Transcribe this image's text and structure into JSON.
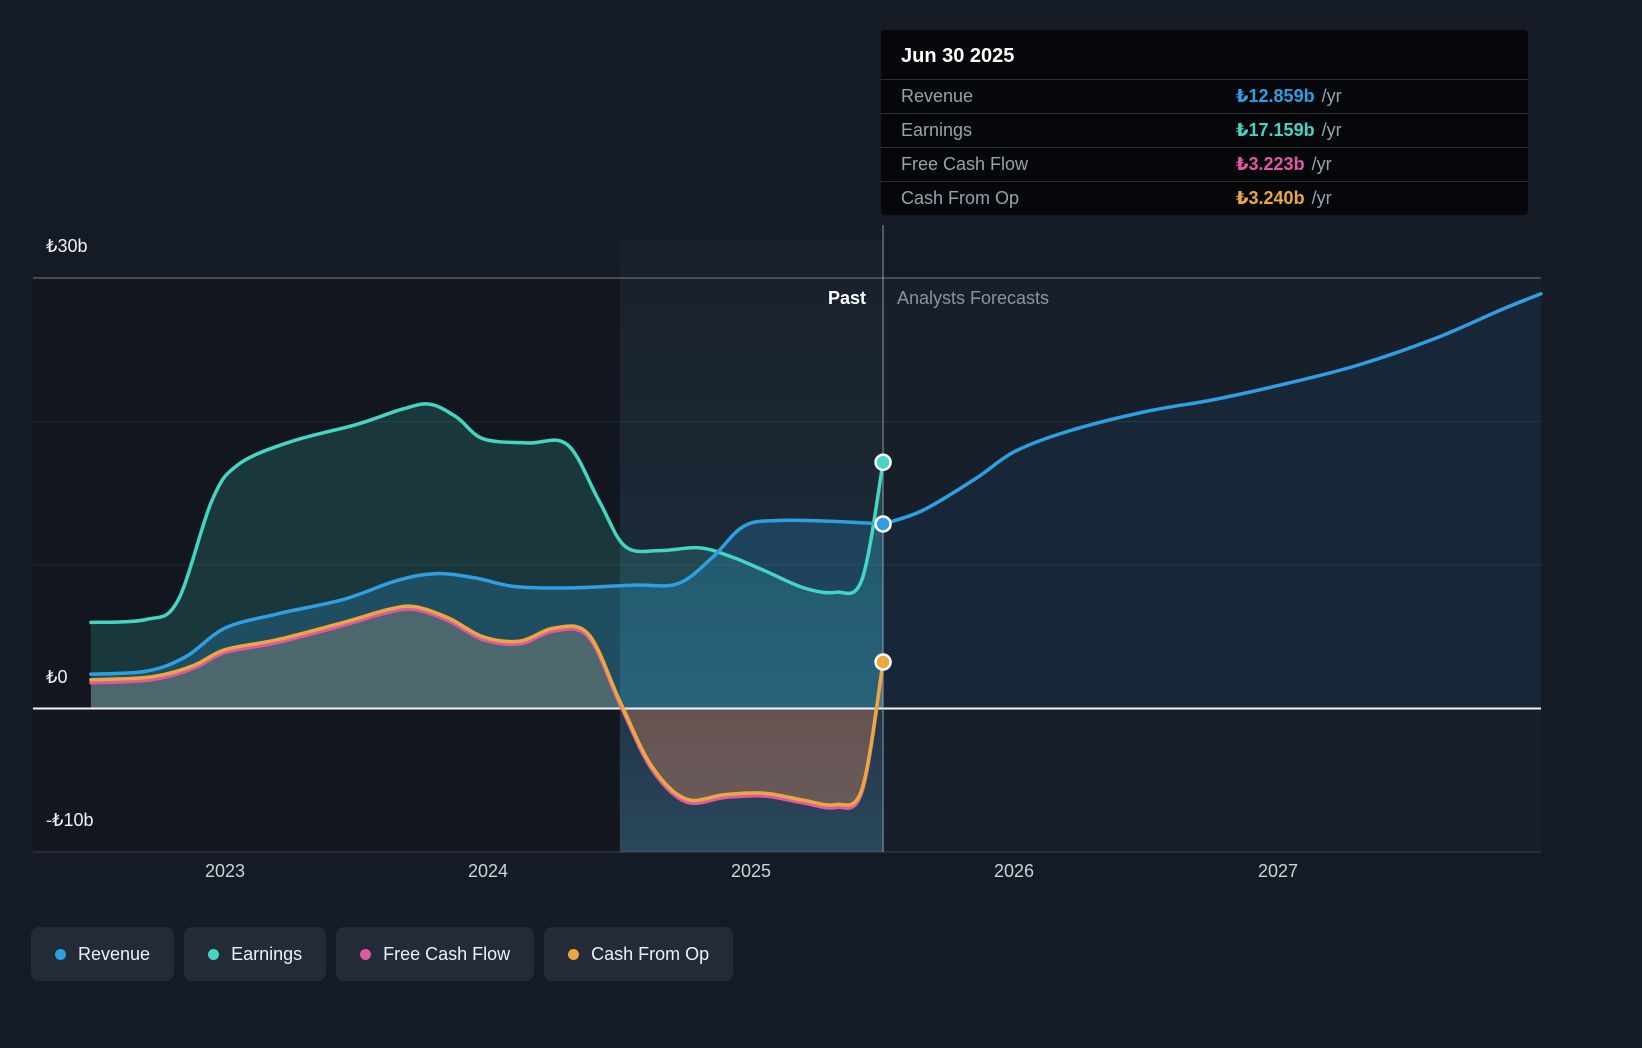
{
  "tooltip": {
    "date": "Jun 30 2025",
    "rows": [
      {
        "label": "Revenue",
        "value": "₺12.859b",
        "suffix": "/yr",
        "color": "#2f9fe4"
      },
      {
        "label": "Earnings",
        "value": "₺17.159b",
        "suffix": "/yr",
        "color": "#45d5c3"
      },
      {
        "label": "Free Cash Flow",
        "value": "₺3.223b",
        "suffix": "/yr",
        "color": "#e059a2"
      },
      {
        "label": "Cash From Op",
        "value": "₺3.240b",
        "suffix": "/yr",
        "color": "#eba83e"
      }
    ]
  },
  "zones": {
    "past": "Past",
    "forecast": "Analysts Forecasts"
  },
  "y_axis": [
    {
      "label": "₺30b",
      "value": 30
    },
    {
      "label": "₺0",
      "value": 0
    },
    {
      "label": "-₺10b",
      "value": -10
    }
  ],
  "x_axis": [
    {
      "label": "2023",
      "value": 2023
    },
    {
      "label": "2024",
      "value": 2024
    },
    {
      "label": "2025",
      "value": 2025
    },
    {
      "label": "2026",
      "value": 2026
    },
    {
      "label": "2027",
      "value": 2027
    }
  ],
  "legend": [
    {
      "label": "Revenue",
      "color": "#2f9fe4"
    },
    {
      "label": "Earnings",
      "color": "#45d5c3"
    },
    {
      "label": "Free Cash Flow",
      "color": "#e059a2"
    },
    {
      "label": "Cash From Op",
      "color": "#eba83e"
    }
  ],
  "chart_data": {
    "type": "line",
    "title": "Earnings and Revenue Growth (past and analysts forecasts)",
    "currency": "₺",
    "unit": "billions TRY per year",
    "xlim": [
      2022.27,
      2028.0
    ],
    "ylim": [
      -10,
      30
    ],
    "gridlines_y": [
      30,
      20,
      10,
      0,
      -10
    ],
    "divider_x": 2025.5,
    "divider_date": "Jun 30 2025",
    "highlight_band": [
      2024.5,
      2025.5
    ],
    "legend_position": "bottom",
    "series": [
      {
        "name": "Free Cash Flow",
        "color": "#e059a2",
        "fill": "rgba(224,89,162,0.16)",
        "x": [
          2022.49,
          2022.72,
          2022.88,
          2023.0,
          2023.2,
          2023.45,
          2023.62,
          2023.72,
          2023.85,
          2023.98,
          2024.12,
          2024.25,
          2024.38,
          2024.5,
          2024.62,
          2024.75,
          2024.9,
          2025.05,
          2025.2,
          2025.32,
          2025.42,
          2025.5
        ],
        "values": [
          1.8,
          2.0,
          2.8,
          3.9,
          4.6,
          5.8,
          6.7,
          6.9,
          6.1,
          4.8,
          4.5,
          5.4,
          5.0,
          0.3,
          -4.2,
          -6.5,
          -6.2,
          -6.1,
          -6.6,
          -6.9,
          -5.8,
          3.223
        ]
      },
      {
        "name": "Cash From Op",
        "color": "#eba83e",
        "fill": "rgba(235,168,62,0.22)",
        "x": [
          2022.49,
          2022.72,
          2022.88,
          2023.0,
          2023.2,
          2023.45,
          2023.62,
          2023.72,
          2023.85,
          2023.98,
          2024.12,
          2024.25,
          2024.38,
          2024.5,
          2024.62,
          2024.75,
          2024.9,
          2025.05,
          2025.2,
          2025.32,
          2025.42,
          2025.5
        ],
        "values": [
          2.0,
          2.2,
          3.0,
          4.1,
          4.8,
          6.0,
          6.9,
          7.1,
          6.3,
          5.0,
          4.7,
          5.6,
          5.2,
          0.5,
          -4.0,
          -6.3,
          -6.0,
          -5.9,
          -6.4,
          -6.7,
          -5.6,
          3.24
        ]
      },
      {
        "name": "Earnings",
        "color": "#45d5c3",
        "fill": "rgba(69,213,195,0.18)",
        "x": [
          2022.49,
          2022.7,
          2022.82,
          2022.95,
          2023.05,
          2023.25,
          2023.5,
          2023.68,
          2023.78,
          2023.88,
          2023.98,
          2024.15,
          2024.3,
          2024.42,
          2024.52,
          2024.65,
          2024.8,
          2024.92,
          2025.05,
          2025.2,
          2025.32,
          2025.42,
          2025.5
        ],
        "values": [
          6.0,
          6.2,
          7.5,
          14.5,
          17.0,
          18.6,
          19.8,
          20.9,
          21.2,
          20.3,
          18.8,
          18.5,
          18.4,
          14.5,
          11.3,
          11.0,
          11.2,
          10.6,
          9.6,
          8.4,
          8.1,
          9.0,
          17.159
        ]
      },
      {
        "name": "Revenue",
        "color": "#2f9fe4",
        "fill": "rgba(47,159,228,0.22)",
        "x": [
          2022.49,
          2022.7,
          2022.85,
          2023.0,
          2023.2,
          2023.45,
          2023.65,
          2023.8,
          2023.95,
          2024.1,
          2024.3,
          2024.55,
          2024.72,
          2024.85,
          2024.97,
          2025.1,
          2025.3,
          2025.5
        ],
        "values": [
          2.4,
          2.6,
          3.6,
          5.6,
          6.6,
          7.6,
          8.9,
          9.4,
          9.1,
          8.5,
          8.4,
          8.6,
          8.7,
          10.5,
          12.7,
          13.1,
          13.05,
          12.859
        ],
        "forecast": {
          "fill": "rgba(47,159,228,0.07)",
          "x": [
            2025.5,
            2025.65,
            2025.85,
            2026.0,
            2026.2,
            2026.5,
            2026.75,
            2027.0,
            2027.3,
            2027.6,
            2027.85,
            2028.0
          ],
          "values": [
            12.859,
            13.8,
            16.0,
            17.9,
            19.3,
            20.7,
            21.5,
            22.5,
            23.9,
            25.8,
            27.8,
            28.9
          ]
        }
      }
    ],
    "markers": [
      {
        "series": "Earnings",
        "x": 2025.5,
        "value": 17.159,
        "color": "#45d5c3"
      },
      {
        "series": "Revenue",
        "x": 2025.5,
        "value": 12.859,
        "color": "#2f9fe4"
      },
      {
        "series": "Cash From Op",
        "x": 2025.5,
        "value": 3.24,
        "color": "#eba83e"
      }
    ]
  }
}
